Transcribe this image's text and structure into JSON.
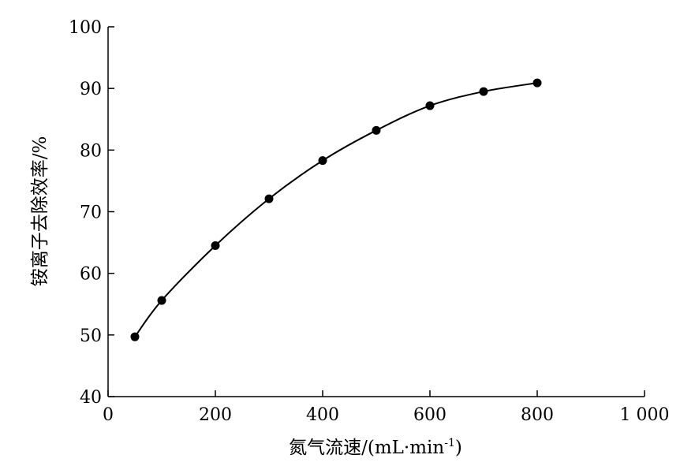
{
  "chart_data": {
    "type": "line",
    "xlabel": "氮气流速/(mL·min",
    "xlabel_sup": "-1",
    "xlabel_close": ")",
    "ylabel": "铵离子去除效率/%",
    "xlim": [
      0,
      1000
    ],
    "ylim": [
      40,
      100
    ],
    "xticks": [
      0,
      200,
      400,
      600,
      800,
      1000
    ],
    "xtick_labels": [
      "0",
      "200",
      "400",
      "600",
      "800",
      "1 000"
    ],
    "yticks": [
      40,
      50,
      60,
      70,
      80,
      90,
      100
    ],
    "ytick_labels": [
      "40",
      "50",
      "60",
      "70",
      "80",
      "90",
      "100"
    ],
    "grid": false,
    "series": [
      {
        "x": [
          50,
          100,
          200,
          300,
          400,
          500,
          600,
          700,
          800
        ],
        "y": [
          49.7,
          55.6,
          64.5,
          72.1,
          78.3,
          83.2,
          87.2,
          89.5,
          90.9
        ],
        "marker": "circle",
        "color": "#000000"
      }
    ]
  }
}
